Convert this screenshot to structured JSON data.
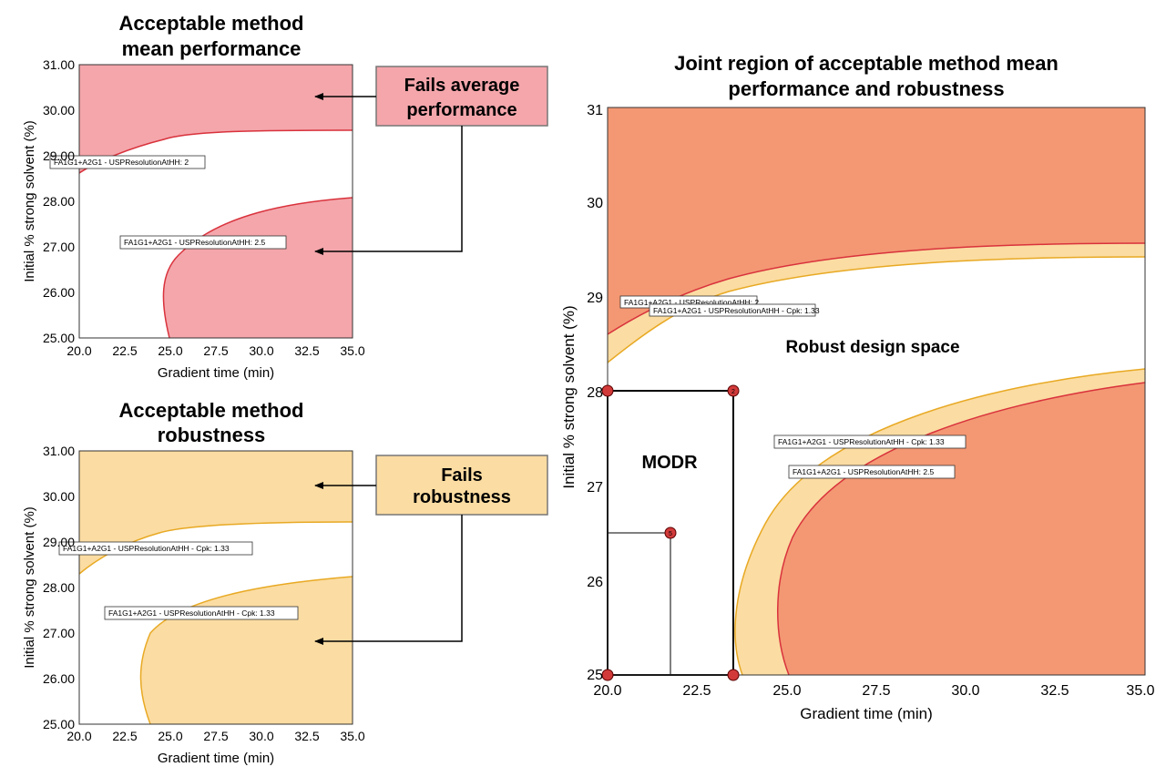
{
  "colors": {
    "fail_average": "#f4a6ab",
    "fail_average_edge": "#d9323c",
    "fail_robust": "#fbdca2",
    "fail_robust_edge": "#e8a923",
    "joint_fail": "#f39873",
    "modr_point": "#d23a3a"
  },
  "panels": {
    "mean": {
      "title_line1": "Acceptable method",
      "title_line2": "mean performance",
      "xlabel": "Gradient time (min)",
      "ylabel": "Initial % strong solvent (%)",
      "xticks": [
        "20.0",
        "22.5",
        "25.0",
        "27.5",
        "30.0",
        "32.5",
        "35.0"
      ],
      "yticks": [
        "25.00",
        "26.00",
        "27.00",
        "28.00",
        "29.00",
        "30.00",
        "31.00"
      ],
      "label_upper": "FA1G1+A2G1 - USPResolutionAtHH: 2",
      "label_lower": "FA1G1+A2G1 - USPResolutionAtHH: 2.5",
      "callout_line1": "Fails average",
      "callout_line2": "performance"
    },
    "robust": {
      "title_line1": "Acceptable method",
      "title_line2": "robustness",
      "xlabel": "Gradient time (min)",
      "ylabel": "Initial % strong solvent (%)",
      "xticks": [
        "20.0",
        "22.5",
        "25.0",
        "27.5",
        "30.0",
        "32.5",
        "35.0"
      ],
      "yticks": [
        "25.00",
        "26.00",
        "27.00",
        "28.00",
        "29.00",
        "30.00",
        "31.00"
      ],
      "label_upper": "FA1G1+A2G1 - USPResolutionAtHH - Cpk: 1.33",
      "label_lower": "FA1G1+A2G1 - USPResolutionAtHH - Cpk: 1.33",
      "callout_line1": "Fails",
      "callout_line2": "robustness"
    },
    "joint": {
      "title_line1": "Joint region of acceptable method mean",
      "title_line2": "performance and robustness",
      "xlabel": "Gradient time (min)",
      "ylabel": "Initial % strong solvent (%)",
      "xticks": [
        "20.0",
        "22.5",
        "25.0",
        "27.5",
        "30.0",
        "32.5",
        "35.0"
      ],
      "yticks": [
        "25",
        "26",
        "27",
        "28",
        "29",
        "30",
        "31"
      ],
      "label_upper_a": "FA1G1+A2G1 - USPResolutionAtHH: 2",
      "label_upper_b": "FA1G1+A2G1 - USPResolutionAtHH - Cpk: 1.33",
      "label_lower_a": "FA1G1+A2G1 - USPResolutionAtHH - Cpk: 1.33",
      "label_lower_b": "FA1G1+A2G1 - USPResolutionAtHH: 2.5",
      "robust_space_label": "Robust design space",
      "modr_label": "MODR",
      "point_labels": [
        "2",
        "5"
      ]
    }
  },
  "chart_data": [
    {
      "type": "area",
      "title": "Acceptable method mean performance",
      "xlabel": "Gradient time (min)",
      "ylabel": "Initial % strong solvent (%)",
      "xlim": [
        20,
        35
      ],
      "ylim": [
        25,
        31
      ],
      "series": [
        {
          "name": "FA1G1+A2G1 - USPResolutionAtHH: 2",
          "x": [
            20,
            22.5,
            25,
            27.5,
            30,
            32.5,
            35
          ],
          "y": [
            28.55,
            29.05,
            29.3,
            29.45,
            29.5,
            29.53,
            29.55
          ]
        },
        {
          "name": "FA1G1+A2G1 - USPResolutionAtHH: 2.5",
          "x": [
            25.2,
            24.6,
            25.0,
            26.0,
            27.5,
            30.0,
            32.5,
            35.0
          ],
          "y": [
            25.0,
            25.8,
            26.5,
            27.0,
            27.4,
            27.75,
            27.95,
            28.1
          ]
        }
      ]
    },
    {
      "type": "area",
      "title": "Acceptable method robustness",
      "xlabel": "Gradient time (min)",
      "ylabel": "Initial % strong solvent (%)",
      "xlim": [
        20,
        35
      ],
      "ylim": [
        25,
        31
      ],
      "series": [
        {
          "name": "FA1G1+A2G1 - USPResolutionAtHH - Cpk: 1.33",
          "x": [
            20,
            22.5,
            25,
            27.5,
            30,
            32.5,
            35
          ],
          "y": [
            28.35,
            28.9,
            29.15,
            29.3,
            29.37,
            29.41,
            29.43
          ]
        },
        {
          "name": "FA1G1+A2G1 - USPResolutionAtHH - Cpk: 1.33",
          "x": [
            23.9,
            23.3,
            23.7,
            25.0,
            27.5,
            30.0,
            32.5,
            35.0
          ],
          "y": [
            25.0,
            25.9,
            26.6,
            27.2,
            27.65,
            27.95,
            28.12,
            28.22
          ]
        }
      ]
    },
    {
      "type": "area",
      "title": "Joint region of acceptable method mean performance and robustness",
      "xlabel": "Gradient time (min)",
      "ylabel": "Initial % strong solvent (%)",
      "xlim": [
        20,
        35
      ],
      "ylim": [
        25,
        31
      ],
      "series": [
        {
          "name": "FA1G1+A2G1 - USPResolutionAtHH: 2",
          "x": [
            20,
            22.5,
            25,
            27.5,
            30,
            32.5,
            35
          ],
          "y": [
            28.6,
            29.05,
            29.3,
            29.45,
            29.5,
            29.53,
            29.55
          ]
        },
        {
          "name": "FA1G1+A2G1 - USPResolutionAtHH - Cpk: 1.33",
          "x": [
            20,
            22.5,
            25,
            27.5,
            30,
            32.5,
            35
          ],
          "y": [
            28.3,
            28.85,
            29.1,
            29.25,
            29.33,
            29.38,
            29.42
          ]
        },
        {
          "name": "FA1G1+A2G1 - USPResolutionAtHH - Cpk: 1.33",
          "x": [
            23.7,
            23.6,
            24.5,
            26.5,
            29.0,
            32.0,
            35.0
          ],
          "y": [
            25.0,
            25.9,
            26.7,
            27.35,
            27.8,
            28.1,
            28.25
          ]
        },
        {
          "name": "FA1G1+A2G1 - USPResolutionAtHH: 2.5",
          "x": [
            25.3,
            24.9,
            25.7,
            27.5,
            30.0,
            32.5,
            35.0
          ],
          "y": [
            25.0,
            25.8,
            26.6,
            27.25,
            27.7,
            27.95,
            28.1
          ]
        }
      ],
      "modr": {
        "x": [
          20,
          23.6
        ],
        "y": [
          25,
          28
        ]
      },
      "points": [
        {
          "label": "2",
          "x": 23.6,
          "y": 28
        },
        {
          "label": "5",
          "x": 21.8,
          "y": 26.5
        }
      ]
    }
  ]
}
